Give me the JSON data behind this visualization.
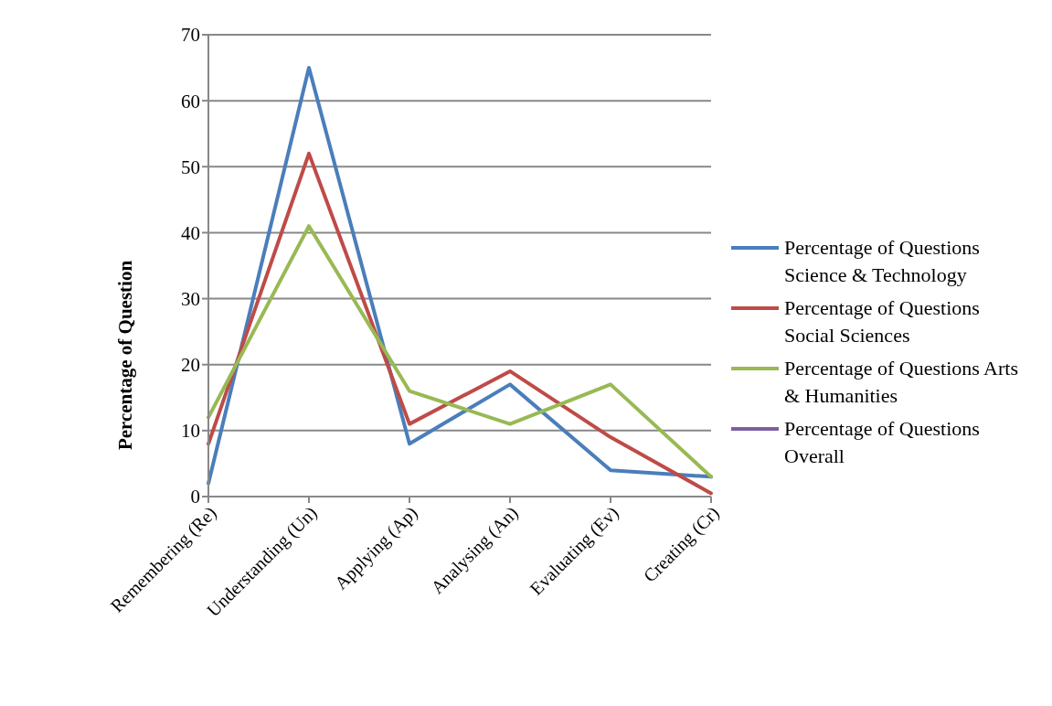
{
  "chart_data": {
    "type": "line",
    "ylabel": "Percentage of Question",
    "categories": [
      "Remembering (Re)",
      "Understanding (Un)",
      "Applying (Ap)",
      "Analysing (An)",
      "Evaluating (Ev)",
      "Creating (Cr)"
    ],
    "series": [
      {
        "name": "Percentage of Questions Science & Technology",
        "color": "#4a7ebb",
        "values": [
          2,
          65,
          8,
          17,
          4,
          3
        ]
      },
      {
        "name": "Percentage of Questions Social Sciences",
        "color": "#be4b48",
        "values": [
          8,
          52,
          11,
          19,
          9,
          0.5
        ]
      },
      {
        "name": "Percentage of Questions Arts & Humanities",
        "color": "#98b954",
        "values": [
          12,
          41,
          16,
          11,
          17,
          3
        ]
      },
      {
        "name": "Percentage of Questions Overall",
        "color": "#7d60a0",
        "values": [
          null,
          null,
          null,
          null,
          null,
          null
        ]
      }
    ],
    "ylim": [
      0,
      70
    ],
    "yticks": [
      0,
      10,
      20,
      30,
      40,
      50,
      60,
      70
    ],
    "grid": "y",
    "legend": "right",
    "marker": "none",
    "line_style": "solid"
  }
}
